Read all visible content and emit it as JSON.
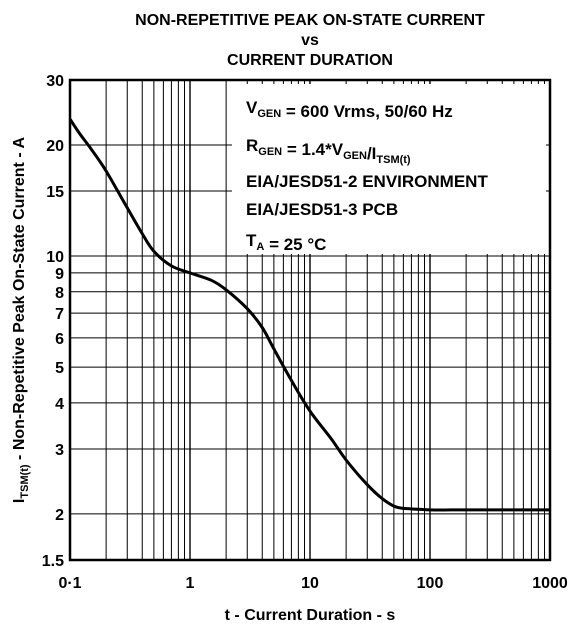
{
  "chart_data": {
    "type": "line",
    "title_lines": [
      "NON-REPETITIVE PEAK ON-STATE CURRENT",
      "vs",
      "CURRENT DURATION"
    ],
    "xlabel": "t - Current Duration - s",
    "ylabel": {
      "main": "I",
      "sub": "TSM(t)",
      "rest": " - Non-Repetitive Peak On-State Current - A"
    },
    "x_scale": "log",
    "y_scale": "log",
    "xlim": [
      0.1,
      1000
    ],
    "ylim": [
      1.5,
      30
    ],
    "grid": true,
    "x_ticks": [
      {
        "value": 0.1,
        "label": "0·1"
      },
      {
        "value": 1,
        "label": "1"
      },
      {
        "value": 10,
        "label": "10"
      },
      {
        "value": 100,
        "label": "100"
      },
      {
        "value": 1000,
        "label": "1000"
      }
    ],
    "y_ticks": [
      {
        "value": 1.5,
        "label": "1.5"
      },
      {
        "value": 2,
        "label": "2"
      },
      {
        "value": 3,
        "label": "3"
      },
      {
        "value": 4,
        "label": "4"
      },
      {
        "value": 5,
        "label": "5"
      },
      {
        "value": 6,
        "label": "6"
      },
      {
        "value": 7,
        "label": "7"
      },
      {
        "value": 8,
        "label": "8"
      },
      {
        "value": 9,
        "label": "9"
      },
      {
        "value": 10,
        "label": "10"
      },
      {
        "value": 15,
        "label": "15"
      },
      {
        "value": 20,
        "label": "20"
      },
      {
        "value": 30,
        "label": "30"
      }
    ],
    "series": [
      {
        "x": [
          0.1,
          0.12,
          0.15,
          0.2,
          0.3,
          0.4,
          0.5,
          0.7,
          1.0,
          1.5,
          2.0,
          3.0,
          4.0,
          5.0,
          7.0,
          10,
          15,
          20,
          30,
          40,
          50,
          60,
          80,
          100,
          150,
          200,
          500,
          1000
        ],
        "y": [
          23.5,
          21.5,
          19.5,
          17.0,
          13.5,
          11.5,
          10.3,
          9.4,
          9.0,
          8.6,
          8.1,
          7.2,
          6.4,
          5.6,
          4.6,
          3.8,
          3.2,
          2.8,
          2.4,
          2.2,
          2.1,
          2.07,
          2.06,
          2.05,
          2.05,
          2.05,
          2.05,
          2.05
        ]
      }
    ],
    "annotations": [
      {
        "parts": [
          {
            "t": "V"
          },
          {
            "t": "GEN",
            "sub": true
          },
          {
            "t": " = 600 Vrms, 50/60 Hz"
          }
        ]
      },
      {
        "parts": [
          {
            "t": "R"
          },
          {
            "t": "GEN",
            "sub": true
          },
          {
            "t": " = 1.4*V"
          },
          {
            "t": "GEN",
            "sub": true
          },
          {
            "t": "/I"
          },
          {
            "t": "TSM(t)",
            "sub": true
          }
        ]
      },
      {
        "parts": [
          {
            "t": "EIA/JESD51-2 ENVIRONMENT"
          }
        ]
      },
      {
        "parts": [
          {
            "t": "EIA/JESD51-3 PCB"
          }
        ]
      },
      {
        "parts": [
          {
            "t": "T"
          },
          {
            "t": "A",
            "sub": true
          },
          {
            "t": " = 25 °C"
          }
        ]
      }
    ]
  }
}
